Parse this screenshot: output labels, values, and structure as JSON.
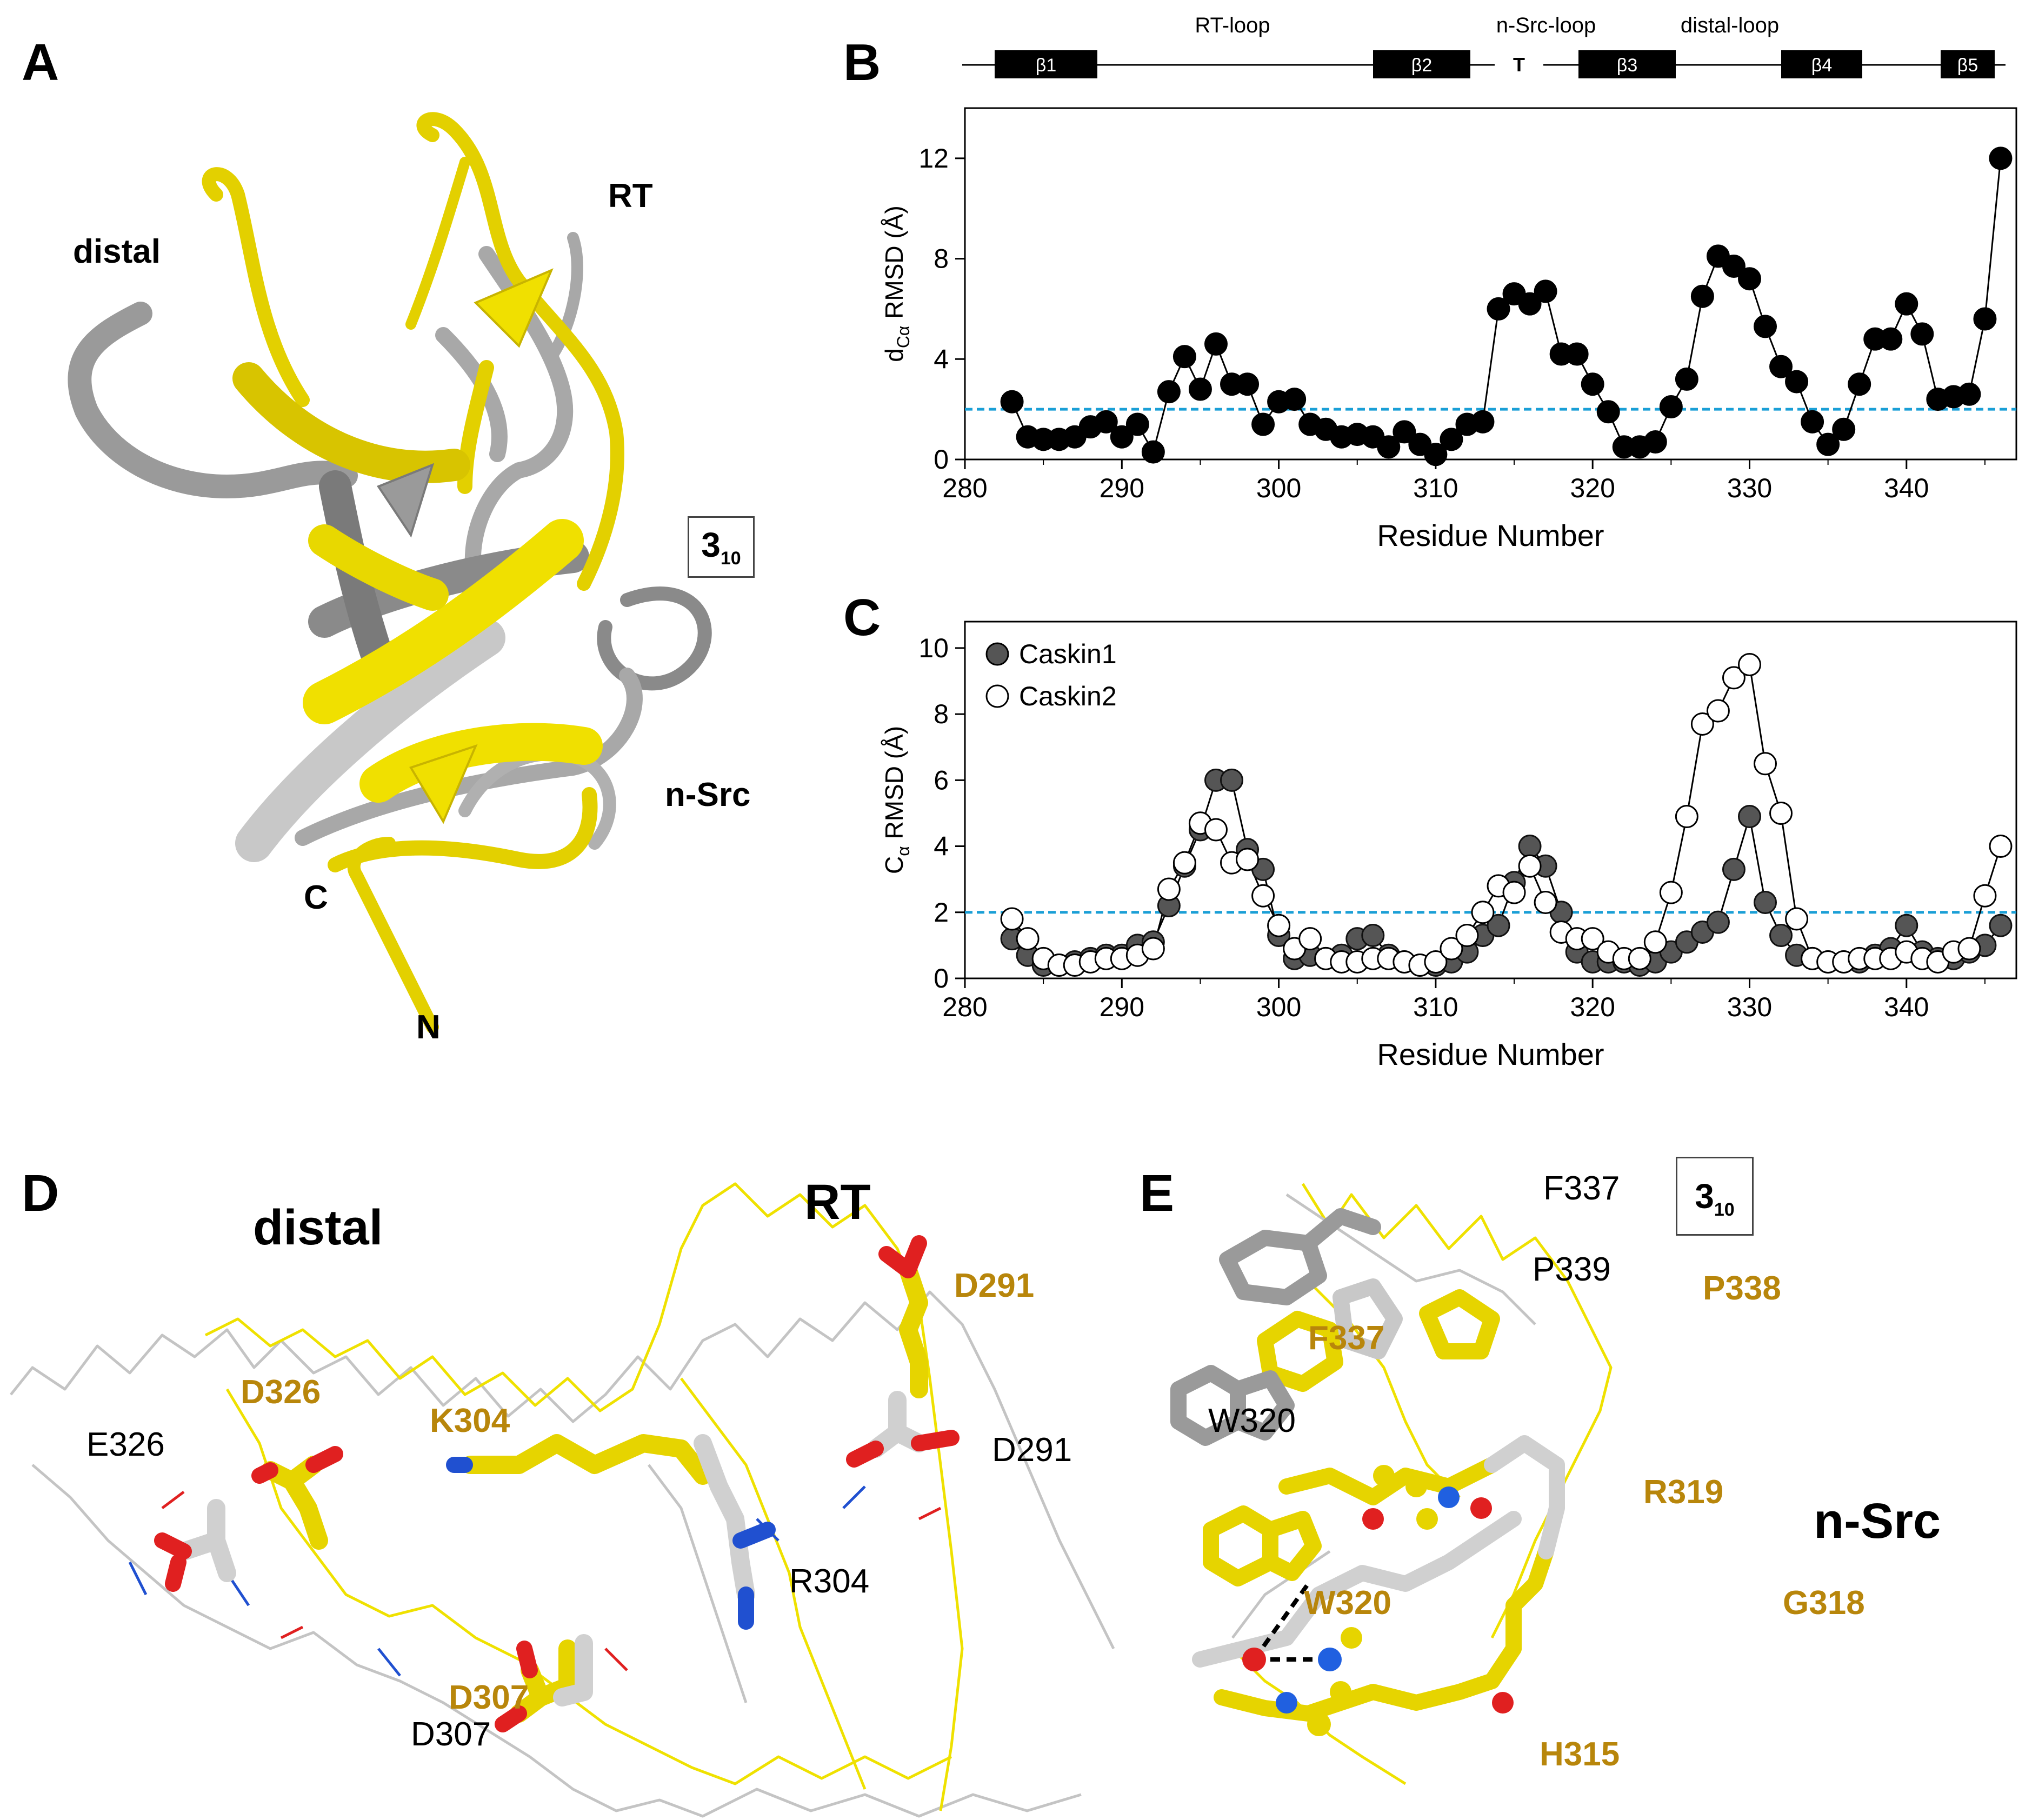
{
  "panels": {
    "A": {
      "letter": "A",
      "labels": {
        "distal": "distal",
        "rt": "RT",
        "nsrc": "n-Src",
        "c": "C",
        "n": "N",
        "h310_main": "3",
        "h310_sub": "10"
      }
    },
    "B": {
      "letter": "B"
    },
    "C": {
      "letter": "C"
    },
    "D": {
      "letter": "D",
      "labels": {
        "distal": "distal",
        "rt": "RT",
        "d326": "D326",
        "e326": "E326",
        "k304": "K304",
        "r304": "R304",
        "d291_gold": "D291",
        "d291": "D291",
        "d307_gold": "D307",
        "d307": "D307"
      }
    },
    "E": {
      "letter": "E",
      "labels": {
        "f337": "F337",
        "p339": "P339",
        "p338": "P338",
        "f337_gold": "F337",
        "w320": "W320",
        "r319": "R319",
        "nsrc": "n-Src",
        "w320_gold": "W320",
        "g318": "G318",
        "h315": "H315",
        "h310_main": "3",
        "h310_sub": "10"
      }
    }
  },
  "topology": {
    "loops": [
      "RT-loop",
      "n-Src-loop",
      "distal-loop"
    ],
    "strands": [
      "β1",
      "β2",
      "T",
      "β3",
      "β4",
      "β5"
    ]
  },
  "colors": {
    "caskin_yellow": "#f0e000",
    "caskin_grey": "#b0b0b0",
    "threshold_line": "#1a9fd6",
    "gold_label": "#b8860b",
    "oxygen": "#e02020",
    "nitrogen": "#2060e0"
  },
  "chart_data": [
    {
      "type": "line",
      "panel": "B",
      "ylabel_main": "d",
      "ylabel_sub": "Cα",
      "ylabel_rest": " RMSD (Å)",
      "xlabel": "Residue Number",
      "xlim": [
        280,
        347
      ],
      "ylim": [
        0,
        14
      ],
      "xticks": [
        280,
        290,
        300,
        310,
        320,
        330,
        340
      ],
      "yticks": [
        0,
        4,
        8,
        12
      ],
      "threshold": 2,
      "series": [
        {
          "marker": "filled-black",
          "x": [
            283,
            284,
            285,
            286,
            287,
            288,
            289,
            290,
            291,
            292,
            293,
            294,
            295,
            296,
            297,
            298,
            299,
            300,
            301,
            302,
            303,
            304,
            305,
            306,
            307,
            308,
            309,
            310,
            311,
            312,
            313,
            314,
            315,
            316,
            317,
            318,
            319,
            320,
            321,
            322,
            323,
            324,
            325,
            326,
            327,
            328,
            329,
            330,
            331,
            332,
            333,
            334,
            335,
            336,
            337,
            338,
            339,
            340,
            341,
            342,
            343,
            344,
            345,
            346
          ],
          "values": [
            2.3,
            0.9,
            0.8,
            0.8,
            0.9,
            1.3,
            1.5,
            0.9,
            1.4,
            0.3,
            2.7,
            4.1,
            2.8,
            4.6,
            3.0,
            3.0,
            1.4,
            2.3,
            2.4,
            1.4,
            1.2,
            0.9,
            1.0,
            0.9,
            0.5,
            1.1,
            0.6,
            0.2,
            0.8,
            1.4,
            1.5,
            6.0,
            6.6,
            6.2,
            6.7,
            4.2,
            4.2,
            3.0,
            1.9,
            0.5,
            0.5,
            0.7,
            2.1,
            3.2,
            6.5,
            8.1,
            7.7,
            7.2,
            5.3,
            3.7,
            3.1,
            1.5,
            0.6,
            1.2,
            3.0,
            4.8,
            4.8,
            6.2,
            5.0,
            2.4,
            2.5,
            2.6,
            5.6,
            12.0
          ]
        }
      ]
    },
    {
      "type": "line",
      "panel": "C",
      "ylabel_main": "C",
      "ylabel_sub": "α",
      "ylabel_rest": " RMSD (Å)",
      "xlabel": "Residue Number",
      "xlim": [
        280,
        347
      ],
      "ylim": [
        0,
        10.8
      ],
      "xticks": [
        280,
        290,
        300,
        310,
        320,
        330,
        340
      ],
      "yticks": [
        0,
        2,
        4,
        6,
        8,
        10
      ],
      "threshold": 2,
      "legend_position": "top-left",
      "series": [
        {
          "name": "Caskin1",
          "marker": "filled-grey",
          "x": [
            283,
            284,
            285,
            286,
            287,
            288,
            289,
            290,
            291,
            292,
            293,
            294,
            295,
            296,
            297,
            298,
            299,
            300,
            301,
            302,
            303,
            304,
            305,
            306,
            307,
            308,
            309,
            310,
            311,
            312,
            313,
            314,
            315,
            316,
            317,
            318,
            319,
            320,
            321,
            322,
            323,
            324,
            325,
            326,
            327,
            328,
            329,
            330,
            331,
            332,
            333,
            334,
            335,
            336,
            337,
            338,
            339,
            340,
            341,
            342,
            343,
            344,
            345,
            346
          ],
          "values": [
            1.2,
            0.7,
            0.4,
            0.4,
            0.5,
            0.6,
            0.7,
            0.7,
            1.0,
            1.1,
            2.2,
            3.4,
            4.5,
            6.0,
            6.0,
            3.9,
            3.3,
            1.3,
            0.6,
            0.7,
            0.6,
            0.7,
            1.2,
            1.3,
            0.7,
            0.5,
            0.4,
            0.4,
            0.5,
            0.8,
            1.3,
            1.6,
            2.9,
            4.0,
            3.4,
            2.0,
            0.8,
            0.5,
            0.5,
            0.5,
            0.4,
            0.5,
            0.8,
            1.1,
            1.4,
            1.7,
            3.3,
            4.9,
            2.3,
            1.3,
            0.7,
            0.6,
            0.5,
            0.5,
            0.5,
            0.7,
            0.9,
            1.6,
            0.8,
            0.6,
            0.6,
            0.8,
            1.0,
            1.6
          ]
        },
        {
          "name": "Caskin2",
          "marker": "open-white",
          "x": [
            283,
            284,
            285,
            286,
            287,
            288,
            289,
            290,
            291,
            292,
            293,
            294,
            295,
            296,
            297,
            298,
            299,
            300,
            301,
            302,
            303,
            304,
            305,
            306,
            307,
            308,
            309,
            310,
            311,
            312,
            313,
            314,
            315,
            316,
            317,
            318,
            319,
            320,
            321,
            322,
            323,
            324,
            325,
            326,
            327,
            328,
            329,
            330,
            331,
            332,
            333,
            334,
            335,
            336,
            337,
            338,
            339,
            340,
            341,
            342,
            343,
            344,
            345,
            346
          ],
          "values": [
            1.8,
            1.2,
            0.6,
            0.4,
            0.4,
            0.5,
            0.6,
            0.6,
            0.7,
            0.9,
            2.7,
            3.5,
            4.7,
            4.5,
            3.5,
            3.6,
            2.5,
            1.6,
            0.9,
            1.2,
            0.6,
            0.5,
            0.5,
            0.6,
            0.6,
            0.5,
            0.4,
            0.5,
            0.9,
            1.3,
            2.0,
            2.8,
            2.6,
            3.4,
            2.3,
            1.4,
            1.2,
            1.2,
            0.8,
            0.6,
            0.6,
            1.1,
            2.6,
            4.9,
            7.7,
            8.1,
            9.1,
            9.5,
            6.5,
            5.0,
            1.8,
            0.6,
            0.5,
            0.5,
            0.6,
            0.6,
            0.6,
            0.8,
            0.6,
            0.5,
            0.8,
            0.9,
            2.5,
            4.0
          ]
        }
      ]
    }
  ]
}
